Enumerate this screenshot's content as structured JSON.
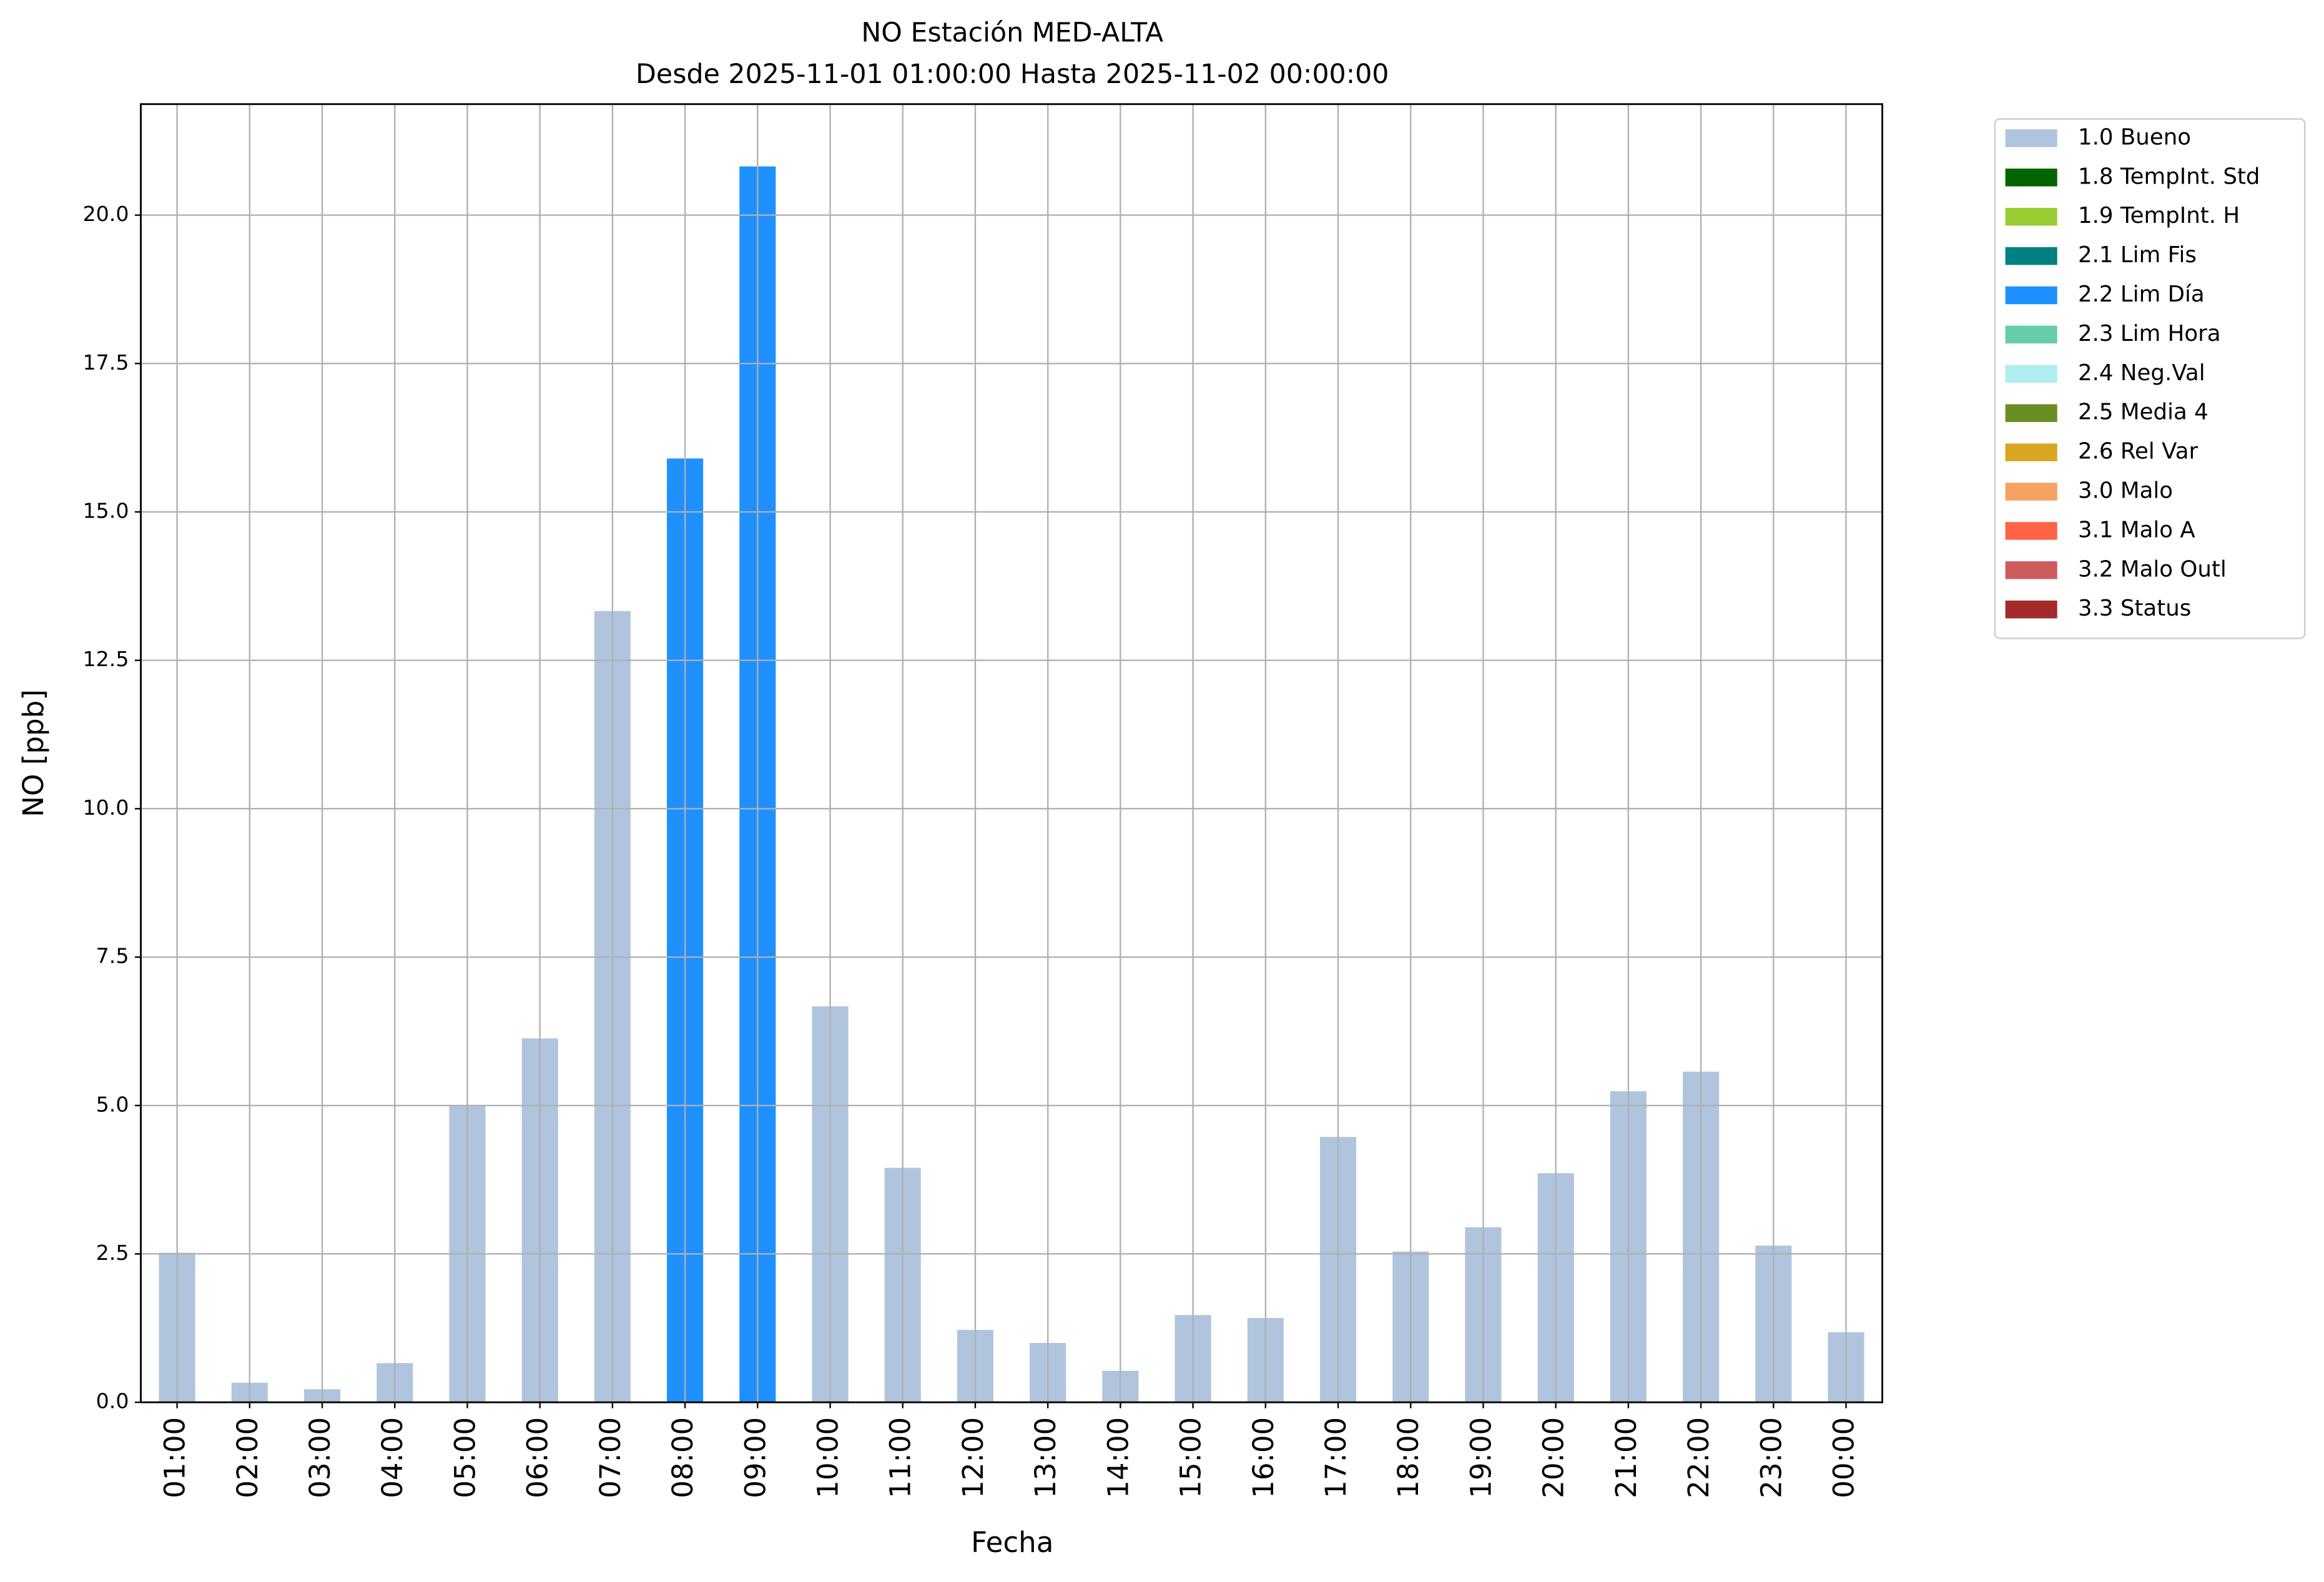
{
  "chart_data": {
    "type": "bar",
    "stacked": true,
    "title": "NO Estación MED-ALTA",
    "subtitle": "Desde 2025-11-01 01:00:00 Hasta 2025-11-02 00:00:00",
    "xlabel": "Fecha",
    "ylabel": "NO [ppb]",
    "categories": [
      "01:00",
      "02:00",
      "03:00",
      "04:00",
      "05:00",
      "06:00",
      "07:00",
      "08:00",
      "09:00",
      "10:00",
      "11:00",
      "12:00",
      "13:00",
      "14:00",
      "15:00",
      "16:00",
      "17:00",
      "18:00",
      "19:00",
      "20:00",
      "21:00",
      "22:00",
      "23:00",
      "00:00"
    ],
    "series": [
      {
        "name": "1.0 Bueno",
        "color": "#b0c4de",
        "values": [
          2.52,
          0.33,
          0.22,
          0.66,
          5.0,
          6.13,
          13.33,
          null,
          null,
          6.67,
          3.95,
          1.22,
          1.0,
          0.53,
          1.47,
          1.42,
          4.47,
          2.54,
          2.95,
          3.86,
          5.24,
          5.57,
          2.64,
          1.18
        ]
      },
      {
        "name": "1.8 TempInt. Std",
        "color": "#006400",
        "values": [
          null,
          null,
          null,
          null,
          null,
          null,
          null,
          null,
          null,
          null,
          null,
          null,
          null,
          null,
          null,
          null,
          null,
          null,
          null,
          null,
          null,
          null,
          null,
          null
        ]
      },
      {
        "name": "1.9 TempInt. H",
        "color": "#9acd32",
        "values": [
          null,
          null,
          null,
          null,
          null,
          null,
          null,
          null,
          null,
          null,
          null,
          null,
          null,
          null,
          null,
          null,
          null,
          null,
          null,
          null,
          null,
          null,
          null,
          null
        ]
      },
      {
        "name": "2.1 Lim Fis",
        "color": "#008080",
        "values": [
          null,
          null,
          null,
          null,
          null,
          null,
          null,
          null,
          null,
          null,
          null,
          null,
          null,
          null,
          null,
          null,
          null,
          null,
          null,
          null,
          null,
          null,
          null,
          null
        ]
      },
      {
        "name": "2.2 Lim Día",
        "color": "#1e90ff",
        "values": [
          null,
          null,
          null,
          null,
          null,
          null,
          null,
          15.9,
          20.82,
          null,
          null,
          null,
          null,
          null,
          null,
          null,
          null,
          null,
          null,
          null,
          null,
          null,
          null,
          null
        ]
      },
      {
        "name": "2.3 Lim Hora",
        "color": "#66cdaa",
        "values": [
          null,
          null,
          null,
          null,
          null,
          null,
          null,
          null,
          null,
          null,
          null,
          null,
          null,
          null,
          null,
          null,
          null,
          null,
          null,
          null,
          null,
          null,
          null,
          null
        ]
      },
      {
        "name": "2.4 Neg.Val",
        "color": "#afeeee",
        "values": [
          null,
          null,
          null,
          null,
          null,
          null,
          null,
          null,
          null,
          null,
          null,
          null,
          null,
          null,
          null,
          null,
          null,
          null,
          null,
          null,
          null,
          null,
          null,
          null
        ]
      },
      {
        "name": "2.5 Media 4",
        "color": "#6b8e23",
        "values": [
          null,
          null,
          null,
          null,
          null,
          null,
          null,
          null,
          null,
          null,
          null,
          null,
          null,
          null,
          null,
          null,
          null,
          null,
          null,
          null,
          null,
          null,
          null,
          null
        ]
      },
      {
        "name": "2.6 Rel Var",
        "color": "#daa520",
        "values": [
          null,
          null,
          null,
          null,
          null,
          null,
          null,
          null,
          null,
          null,
          null,
          null,
          null,
          null,
          null,
          null,
          null,
          null,
          null,
          null,
          null,
          null,
          null,
          null
        ]
      },
      {
        "name": "3.0 Malo",
        "color": "#f4a460",
        "values": [
          null,
          null,
          null,
          null,
          null,
          null,
          null,
          null,
          null,
          null,
          null,
          null,
          null,
          null,
          null,
          null,
          null,
          null,
          null,
          null,
          null,
          null,
          null,
          null
        ]
      },
      {
        "name": "3.1 Malo A",
        "color": "#ff6347",
        "values": [
          null,
          null,
          null,
          null,
          null,
          null,
          null,
          null,
          null,
          null,
          null,
          null,
          null,
          null,
          null,
          null,
          null,
          null,
          null,
          null,
          null,
          null,
          null,
          null
        ]
      },
      {
        "name": "3.2 Malo Outl",
        "color": "#cd5c5c",
        "values": [
          null,
          null,
          null,
          null,
          null,
          null,
          null,
          null,
          null,
          null,
          null,
          null,
          null,
          null,
          null,
          null,
          null,
          null,
          null,
          null,
          null,
          null,
          null,
          null
        ]
      },
      {
        "name": "3.3 Status",
        "color": "#a52a2a",
        "values": [
          null,
          null,
          null,
          null,
          null,
          null,
          null,
          null,
          null,
          null,
          null,
          null,
          null,
          null,
          null,
          null,
          null,
          null,
          null,
          null,
          null,
          null,
          null,
          null
        ]
      }
    ],
    "ylim": [
      0,
      21.87
    ],
    "yticks": [
      {
        "value": 0,
        "label": "0.0"
      },
      2.5,
      {
        "value": 5,
        "label": "5.0"
      },
      7.5,
      {
        "value": 10,
        "label": "10.0"
      },
      12.5,
      {
        "value": 15,
        "label": "15.0"
      },
      17.5,
      {
        "value": 20,
        "label": "20.0"
      }
    ],
    "grid": true,
    "legend": "outside upper right"
  }
}
